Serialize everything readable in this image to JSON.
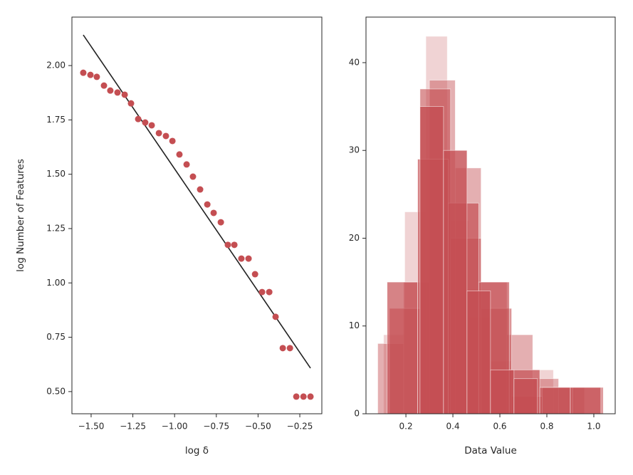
{
  "chart_data": [
    {
      "type": "scatter",
      "xlabel": "log δ",
      "ylabel": "log Number of Features",
      "color": "#c44e52",
      "x": [
        -1.547,
        -1.504,
        -1.466,
        -1.423,
        -1.385,
        -1.342,
        -1.299,
        -1.261,
        -1.218,
        -1.176,
        -1.137,
        -1.094,
        -1.052,
        -1.013,
        -0.971,
        -0.928,
        -0.89,
        -0.847,
        -0.804,
        -0.766,
        -0.723,
        -0.681,
        -0.642,
        -0.6,
        -0.557,
        -0.518,
        -0.476,
        -0.433,
        -0.395,
        -0.352,
        -0.309,
        -0.271,
        -0.228,
        -0.186
      ],
      "values": [
        1.967,
        1.957,
        1.948,
        1.908,
        1.885,
        1.876,
        1.866,
        1.826,
        1.754,
        1.738,
        1.725,
        1.689,
        1.676,
        1.653,
        1.591,
        1.545,
        1.489,
        1.43,
        1.361,
        1.322,
        1.279,
        1.175,
        1.175,
        1.112,
        1.112,
        1.04,
        0.958,
        0.958,
        0.844,
        0.7,
        0.7,
        0.477,
        0.477,
        0.477
      ],
      "fit_line": {
        "x": [
          -1.547,
          -0.186
        ],
        "values": [
          2.141,
          0.608
        ],
        "color": "#222222"
      },
      "xlim": [
        -1.615,
        -0.118
      ],
      "ylim": [
        0.398,
        2.223
      ],
      "xticks": [
        {
          "value": -1.5,
          "label": "−1.50"
        },
        {
          "value": -1.25,
          "label": "−1.25"
        },
        {
          "value": -1.0,
          "label": "−1.00"
        },
        {
          "value": -0.75,
          "label": "−0.75"
        },
        {
          "value": -0.5,
          "label": "−0.50"
        },
        {
          "value": -0.25,
          "label": "−0.25"
        }
      ],
      "yticks": [
        {
          "value": 0.5,
          "label": "0.50"
        },
        {
          "value": 0.75,
          "label": "0.75"
        },
        {
          "value": 1.0,
          "label": "1.00"
        },
        {
          "value": 1.25,
          "label": "1.25"
        },
        {
          "value": 1.5,
          "label": "1.50"
        },
        {
          "value": 1.75,
          "label": "1.75"
        },
        {
          "value": 2.0,
          "label": "2.00"
        }
      ]
    },
    {
      "type": "histogram",
      "xlabel": "Data Value",
      "color": "#c44e52",
      "series": [
        {
          "alpha": 0.25,
          "bins": [
            0.105,
            0.195,
            0.285,
            0.376,
            0.466,
            0.557,
            0.647,
            0.738,
            0.828,
            0.919
          ],
          "values": [
            9,
            23,
            43,
            22,
            11,
            6,
            2,
            5,
            3
          ]
        },
        {
          "alpha": 0.45,
          "bins": [
            0.08,
            0.19,
            0.3,
            0.41,
            0.52,
            0.63,
            0.74,
            0.85,
            0.96
          ],
          "values": [
            8,
            15,
            38,
            28,
            15,
            9,
            4,
            3
          ]
        },
        {
          "alpha": 0.6,
          "bins": [
            0.13,
            0.26,
            0.39,
            0.52,
            0.65,
            0.78,
            0.91,
            1.04
          ],
          "values": [
            12,
            37,
            20,
            12,
            2,
            3,
            3
          ]
        },
        {
          "alpha": 0.7,
          "bins": [
            0.12,
            0.25,
            0.38,
            0.51,
            0.64,
            0.77,
            0.9,
            1.03
          ],
          "values": [
            15,
            29,
            24,
            15,
            5,
            3,
            3
          ]
        },
        {
          "alpha": 0.8,
          "bins": [
            0.26,
            0.36,
            0.46,
            0.56,
            0.66,
            0.76
          ],
          "values": [
            35,
            30,
            14,
            5,
            4
          ]
        }
      ],
      "xlim": [
        0.03,
        1.091
      ],
      "ylim": [
        0,
        45.19
      ],
      "xticks": [
        0.2,
        0.4,
        0.6,
        0.8,
        {
          "value": 1.0,
          "label": "1.0"
        }
      ],
      "yticks": [
        0,
        10,
        20,
        30,
        40
      ]
    }
  ]
}
